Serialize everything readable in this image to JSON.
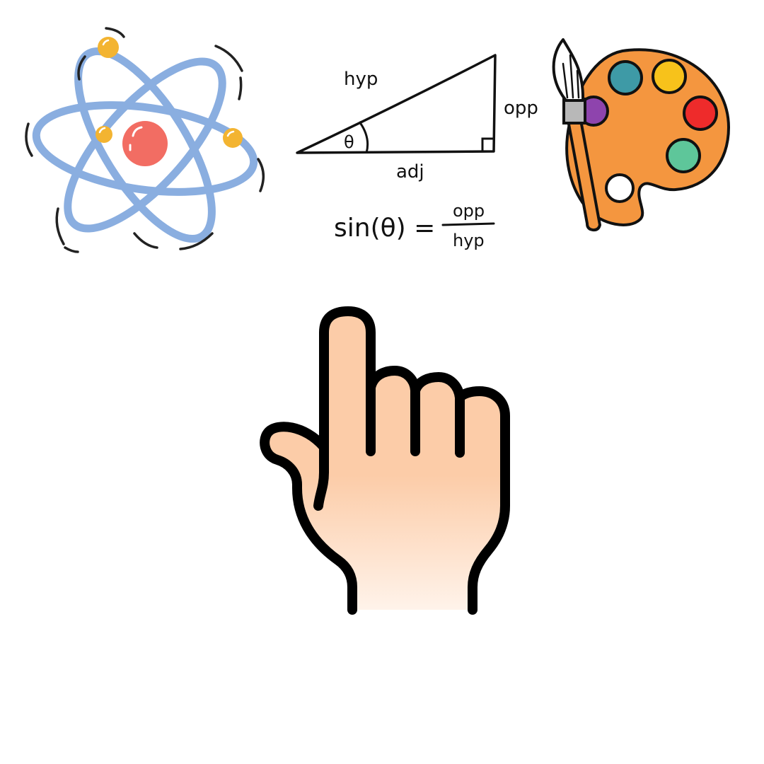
{
  "labels": {
    "hypotenuse": "hyp",
    "opposite": "opp",
    "adjacent": "adj",
    "angle": "θ"
  },
  "formula": {
    "lhs": "sin(θ) =",
    "numerator": "opp",
    "denominator": "hyp"
  },
  "colors": {
    "orbit": "#8aaee0",
    "nucleus": "#f26d63",
    "electron": "#f3b431",
    "palette": "#f4963f",
    "paint_teal": "#3e9aa6",
    "paint_yellow": "#f7c21b",
    "paint_red": "#ee2b2b",
    "paint_green": "#5ec69a",
    "paint_purple": "#8e44ad",
    "paint_white": "#ffffff",
    "skin": "#fccca8",
    "outline": "#000000"
  },
  "icons": {
    "science": "atom-icon",
    "math": "right-triangle-icon",
    "art": "paint-palette-icon",
    "pointer": "pointing-hand-icon"
  }
}
